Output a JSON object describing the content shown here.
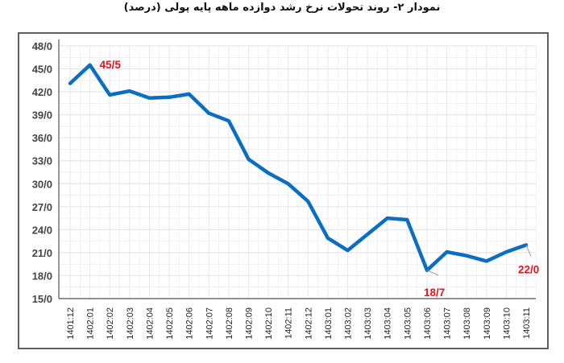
{
  "title": "نمودار ۲- روند تحولات نرخ رشد دوازده ماهه پایه پولی (درصد)",
  "colors": {
    "line": "#0a6fc2",
    "label": "#e0141e",
    "grid": "#e6e6ee",
    "frame": "#5f5f5f"
  },
  "chart_data": {
    "type": "line",
    "title": "نمودار ۲- روند تحولات نرخ رشد دوازده ماهه پایه پولی (درصد)",
    "xlabel": "",
    "ylabel": "",
    "ylim": [
      15,
      48
    ],
    "yticks": [
      "15/0",
      "18/0",
      "21/0",
      "24/0",
      "27/0",
      "30/0",
      "33/0",
      "36/0",
      "39/0",
      "42/0",
      "45/0",
      "48/0"
    ],
    "grid": true,
    "legend": null,
    "categories": [
      "1401:12",
      "1402:01",
      "1402:02",
      "1402:03",
      "1402:04",
      "1402:05",
      "1402:06",
      "1402:07",
      "1402:08",
      "1402:09",
      "1402:10",
      "1402:11",
      "1402:12",
      "1403:01",
      "1403:02",
      "1403:03",
      "1403:04",
      "1403:05",
      "1403:06",
      "1403:07",
      "1403:08",
      "1403:09",
      "1403:10",
      "1403:11"
    ],
    "series": [
      {
        "name": "نرخ رشد دوازده ماهه پایه پولی",
        "values": [
          43.1,
          45.5,
          41.6,
          42.1,
          41.2,
          41.3,
          41.7,
          39.2,
          38.2,
          33.2,
          31.4,
          30.0,
          27.7,
          22.9,
          21.3,
          23.4,
          25.5,
          25.3,
          18.7,
          21.1,
          20.6,
          19.9,
          21.1,
          22.0
        ]
      }
    ],
    "annotations": [
      {
        "category": "1402:01",
        "text": "45/5"
      },
      {
        "category": "1403:06",
        "text": "18/7"
      },
      {
        "category": "1403:11",
        "text": "22/0"
      }
    ]
  }
}
